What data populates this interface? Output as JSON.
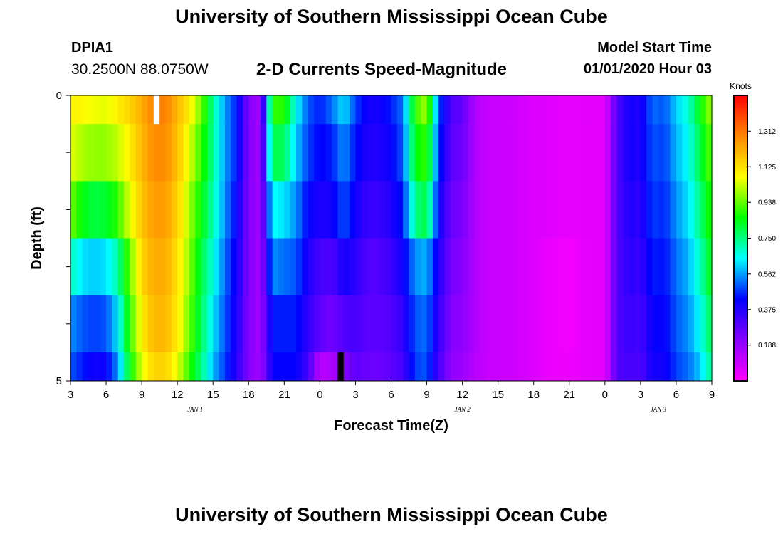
{
  "header": {
    "title": "University of Southern Mississippi Ocean Cube",
    "station_id": "DPIA1",
    "coordinates": "30.2500N 88.0750W",
    "subtitle": "2-D Currents Speed-Magnitude",
    "model_start_label": "Model Start Time",
    "model_start_value": "01/01/2020 Hour 03"
  },
  "footer": {
    "title": "University of Southern Mississippi Ocean Cube"
  },
  "chart_data": {
    "type": "heatmap",
    "title": "2-D Currents Speed-Magnitude",
    "xlabel": "Forecast Time(Z)",
    "ylabel": "Depth (ft)",
    "x_start_hour": 3,
    "x_end_hour": 57,
    "x_step_hours": 0.5,
    "x_tick_hours": [
      3,
      6,
      9,
      12,
      15,
      18,
      21,
      24,
      27,
      30,
      33,
      36,
      39,
      42,
      45,
      48,
      51,
      54,
      57
    ],
    "x_tick_labels": [
      "3",
      "6",
      "9",
      "12",
      "15",
      "18",
      "21",
      "0",
      "3",
      "6",
      "9",
      "12",
      "15",
      "18",
      "21",
      "0",
      "3",
      "6",
      "9"
    ],
    "date_labels": [
      {
        "label": "JAN 1",
        "hour": 13.5
      },
      {
        "label": "JAN 2",
        "hour": 36
      },
      {
        "label": "JAN 3",
        "hour": 52.5
      }
    ],
    "y_range": [
      0,
      5
    ],
    "y_tick_values": [
      0,
      1,
      2,
      3,
      4,
      5
    ],
    "y_tick_labels": [
      "0",
      "",
      "",
      "",
      "",
      "5"
    ],
    "depth_levels": 5,
    "colorbar": {
      "title": "Knots",
      "min": 0,
      "max": 1.5,
      "tick_values": [
        0.188,
        0.375,
        0.562,
        0.75,
        0.938,
        1.125,
        1.312
      ],
      "tick_labels": [
        "0.188",
        "0.375",
        "0.562",
        "0.750",
        "0.938",
        "1.125",
        "1.312"
      ],
      "colors": [
        "#ff00ff",
        "#8800ff",
        "#0000ff",
        "#00ffff",
        "#00ff00",
        "#ffff00",
        "#ff8800",
        "#ff0000"
      ]
    },
    "time_keyframes_hours": [
      3,
      4,
      5,
      6,
      7,
      8,
      9,
      10,
      11,
      12,
      13,
      14,
      15,
      16,
      17,
      18,
      19,
      20,
      21,
      22,
      23,
      24,
      25,
      26,
      27,
      28,
      29,
      30,
      31,
      32,
      33,
      34,
      35,
      36,
      37,
      38,
      39,
      40,
      41,
      42,
      43,
      44,
      45,
      46,
      47,
      48,
      49,
      50,
      51,
      52,
      53,
      54,
      55,
      56,
      57
    ],
    "speed_by_depth_layer_knots": [
      [
        1.1,
        1.08,
        1.06,
        1.05,
        1.1,
        1.15,
        1.22,
        1.3,
        1.3,
        1.2,
        1.1,
        0.95,
        0.72,
        0.56,
        0.45,
        0.22,
        0.16,
        0.9,
        0.88,
        0.65,
        0.5,
        0.45,
        0.52,
        0.62,
        0.48,
        0.4,
        0.4,
        0.45,
        0.52,
        0.9,
        1.0,
        0.5,
        0.3,
        0.28,
        0.15,
        0.1,
        0.1,
        0.09,
        0.08,
        0.06,
        0.06,
        0.05,
        0.04,
        0.05,
        0.05,
        0.05,
        0.3,
        0.4,
        0.38,
        0.52,
        0.5,
        0.6,
        0.68,
        0.85,
        1.0
      ],
      [
        1.05,
        1.0,
        0.98,
        0.98,
        1.02,
        1.1,
        1.2,
        1.28,
        1.28,
        1.18,
        1.05,
        0.9,
        0.72,
        0.56,
        0.45,
        0.22,
        0.16,
        0.8,
        0.78,
        0.6,
        0.48,
        0.42,
        0.45,
        0.55,
        0.44,
        0.38,
        0.38,
        0.42,
        0.5,
        0.85,
        0.9,
        0.48,
        0.28,
        0.26,
        0.15,
        0.1,
        0.1,
        0.09,
        0.08,
        0.06,
        0.06,
        0.05,
        0.04,
        0.05,
        0.05,
        0.05,
        0.3,
        0.4,
        0.38,
        0.5,
        0.48,
        0.58,
        0.65,
        0.8,
        0.95
      ],
      [
        0.95,
        0.85,
        0.8,
        0.82,
        0.9,
        1.05,
        1.18,
        1.25,
        1.25,
        1.15,
        1.0,
        0.85,
        0.7,
        0.55,
        0.42,
        0.22,
        0.16,
        0.65,
        0.62,
        0.55,
        0.42,
        0.38,
        0.4,
        0.5,
        0.4,
        0.34,
        0.34,
        0.38,
        0.45,
        0.75,
        0.8,
        0.42,
        0.26,
        0.24,
        0.15,
        0.1,
        0.1,
        0.09,
        0.08,
        0.06,
        0.06,
        0.05,
        0.04,
        0.05,
        0.05,
        0.05,
        0.3,
        0.38,
        0.36,
        0.48,
        0.46,
        0.55,
        0.62,
        0.75,
        0.9
      ],
      [
        0.7,
        0.62,
        0.6,
        0.62,
        0.72,
        0.95,
        1.15,
        1.22,
        1.22,
        1.12,
        0.98,
        0.8,
        0.66,
        0.52,
        0.4,
        0.22,
        0.16,
        0.55,
        0.52,
        0.5,
        0.38,
        0.32,
        0.3,
        0.4,
        0.36,
        0.3,
        0.3,
        0.34,
        0.4,
        0.55,
        0.58,
        0.38,
        0.24,
        0.22,
        0.15,
        0.1,
        0.1,
        0.09,
        0.08,
        0.06,
        0.04,
        0.03,
        0.02,
        0.04,
        0.05,
        0.05,
        0.3,
        0.36,
        0.34,
        0.45,
        0.44,
        0.52,
        0.58,
        0.7,
        0.85
      ],
      [
        0.55,
        0.5,
        0.48,
        0.5,
        0.62,
        0.9,
        1.1,
        1.2,
        1.2,
        1.1,
        0.95,
        0.78,
        0.62,
        0.5,
        0.38,
        0.22,
        0.16,
        0.45,
        0.45,
        0.45,
        0.35,
        0.28,
        0.25,
        0.3,
        0.32,
        0.28,
        0.28,
        0.3,
        0.35,
        0.5,
        0.52,
        0.35,
        0.22,
        0.2,
        0.15,
        0.1,
        0.1,
        0.09,
        0.08,
        0.06,
        0.04,
        0.03,
        0.02,
        0.04,
        0.05,
        0.05,
        0.3,
        0.34,
        0.32,
        0.42,
        0.42,
        0.5,
        0.55,
        0.65,
        0.8
      ],
      [
        0.5,
        0.45,
        0.4,
        0.42,
        0.55,
        0.85,
        1.05,
        1.15,
        1.15,
        1.05,
        0.9,
        0.75,
        0.58,
        0.48,
        0.36,
        0.22,
        0.16,
        0.42,
        0.42,
        0.42,
        0.32,
        0.12,
        0.15,
        0.22,
        0.28,
        0.26,
        0.26,
        0.28,
        0.32,
        0.48,
        0.5,
        0.32,
        0.2,
        0.18,
        0.13,
        0.1,
        0.1,
        0.09,
        0.08,
        0.06,
        0.04,
        0.03,
        0.03,
        0.04,
        0.05,
        0.05,
        0.3,
        0.32,
        0.3,
        0.4,
        0.4,
        0.48,
        0.52,
        0.6,
        0.75
      ]
    ],
    "data_gaps": [
      {
        "start_hour": 10,
        "end_hour": 10.5,
        "depth_top": 0,
        "depth_bottom": 0.5,
        "marker_color": "#ffffff"
      },
      {
        "start_hour": 25.5,
        "end_hour": 26,
        "depth_top": 4.5,
        "depth_bottom": 5,
        "marker_color": "#000000"
      }
    ]
  }
}
